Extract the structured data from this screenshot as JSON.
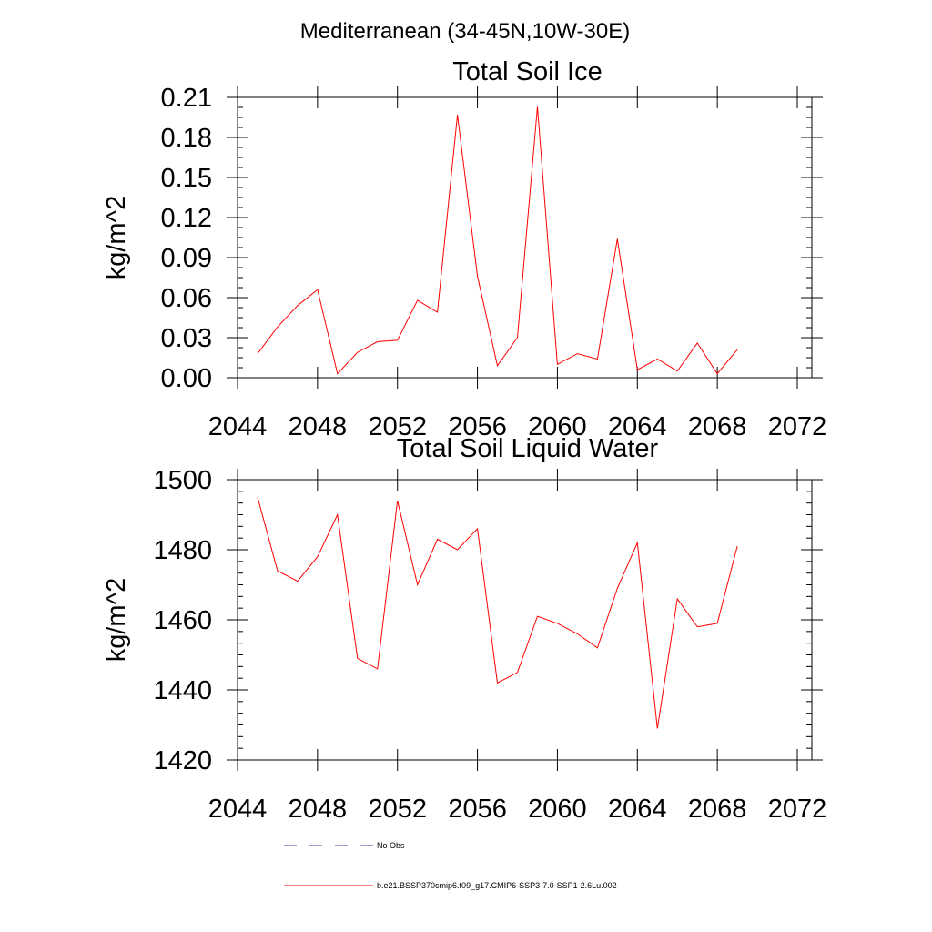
{
  "figure": {
    "main_title": "Mediterranean (34-45N,10W-30E)"
  },
  "colors": {
    "series": "#ff0000",
    "no_obs": "#3b3b9e",
    "axis": "#000000"
  },
  "chart_data": [
    {
      "type": "line",
      "title": "Total Soil Ice",
      "ylabel": "kg/m^2",
      "xlabel": "",
      "xlim": [
        2044,
        2072
      ],
      "ylim": [
        0,
        0.21
      ],
      "xticks": [
        "2044",
        "2048",
        "2052",
        "2056",
        "2060",
        "2064",
        "2068",
        "2072"
      ],
      "yticks": [
        "0.00",
        "0.03",
        "0.06",
        "0.09",
        "0.12",
        "0.15",
        "0.18",
        "0.21"
      ],
      "x": [
        2045,
        2046,
        2047,
        2048,
        2049,
        2050,
        2051,
        2052,
        2053,
        2054,
        2055,
        2056,
        2057,
        2058,
        2059,
        2060,
        2061,
        2062,
        2063,
        2064,
        2065,
        2066,
        2067,
        2068,
        2069
      ],
      "series": [
        {
          "values": [
            0.018,
            0.038,
            0.054,
            0.066,
            0.003,
            0.019,
            0.027,
            0.028,
            0.058,
            0.049,
            0.197,
            0.076,
            0.009,
            0.03,
            0.203,
            0.01,
            0.018,
            0.014,
            0.104,
            0.006,
            0.014,
            0.005,
            0.026,
            0.003,
            0.021
          ]
        }
      ],
      "grid": false
    },
    {
      "type": "line",
      "title": "Total Soil Liquid Water",
      "ylabel": "kg/m^2",
      "xlabel": "",
      "xlim": [
        2044,
        2072
      ],
      "ylim": [
        1420,
        1500
      ],
      "xticks": [
        "2044",
        "2048",
        "2052",
        "2056",
        "2060",
        "2064",
        "2068",
        "2072"
      ],
      "yticks": [
        "1420",
        "1440",
        "1460",
        "1480",
        "1500"
      ],
      "x": [
        2045,
        2046,
        2047,
        2048,
        2049,
        2050,
        2051,
        2052,
        2053,
        2054,
        2055,
        2056,
        2057,
        2058,
        2059,
        2060,
        2061,
        2062,
        2063,
        2064,
        2065,
        2066,
        2067,
        2068,
        2069
      ],
      "series": [
        {
          "values": [
            1495,
            1474,
            1471,
            1478,
            1490,
            1449,
            1446,
            1494,
            1470,
            1483,
            1480,
            1486,
            1442,
            1445,
            1461,
            1459,
            1456,
            1452,
            1469,
            1482,
            1429,
            1466,
            1458,
            1459,
            1481
          ]
        }
      ],
      "grid": false
    }
  ],
  "legend": {
    "items": [
      {
        "label": "No Obs",
        "style": "dashed"
      },
      {
        "label": "b.e21.BSSP370cmip6.f09_g17.CMIP6-SSP3-7.0-SSP1-2.6Lu.002",
        "style": "solid"
      }
    ]
  }
}
